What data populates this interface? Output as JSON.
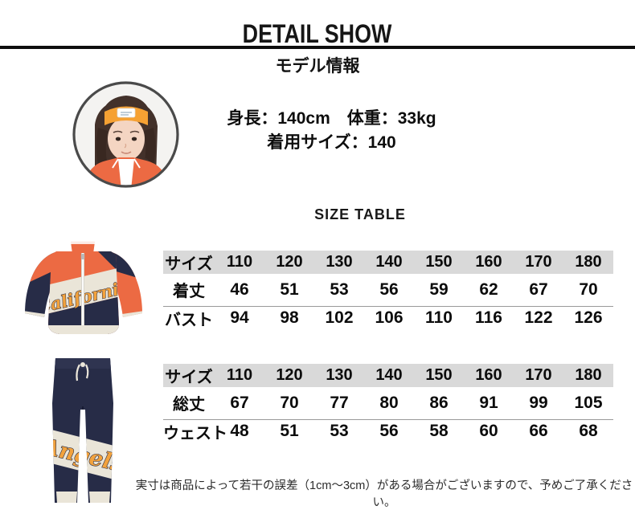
{
  "header": {
    "title": "DETAIL SHOW"
  },
  "model_section": {
    "heading": "モデル情報",
    "height_weight_line": "身長：140cm　体重：33kg",
    "size_line": "着用サイズ：140"
  },
  "size_section": {
    "heading": "SIZE TABLE",
    "jacket_table": {
      "header": [
        "サイズ",
        "110",
        "120",
        "130",
        "140",
        "150",
        "160",
        "170",
        "180"
      ],
      "rows": [
        [
          "着丈",
          "46",
          "51",
          "53",
          "56",
          "59",
          "62",
          "67",
          "70"
        ],
        [
          "バスト",
          "94",
          "98",
          "102",
          "106",
          "110",
          "116",
          "122",
          "126"
        ]
      ]
    },
    "pants_table": {
      "header": [
        "サイズ",
        "110",
        "120",
        "130",
        "140",
        "150",
        "160",
        "170",
        "180"
      ],
      "rows": [
        [
          "総丈",
          "67",
          "70",
          "77",
          "80",
          "86",
          "91",
          "99",
          "105"
        ],
        [
          "ウェスト",
          "48",
          "51",
          "53",
          "56",
          "58",
          "60",
          "66",
          "68"
        ]
      ]
    }
  },
  "product_images": {
    "jacket_script": "California",
    "pants_script": "Angels"
  },
  "footnote": "実寸は商品によって若干の誤差（1cm～3cm）がある場合がございますので、予めご了承ください。",
  "colors": {
    "orange": "#ec6a43",
    "navy": "#272c47",
    "cream": "#eae5d8",
    "script-orange": "#f2a23d",
    "header-gray": "#d9d9d9",
    "line-light": "#c9c9c9",
    "line-dark": "#999999",
    "band-orange": "#f6a133"
  }
}
